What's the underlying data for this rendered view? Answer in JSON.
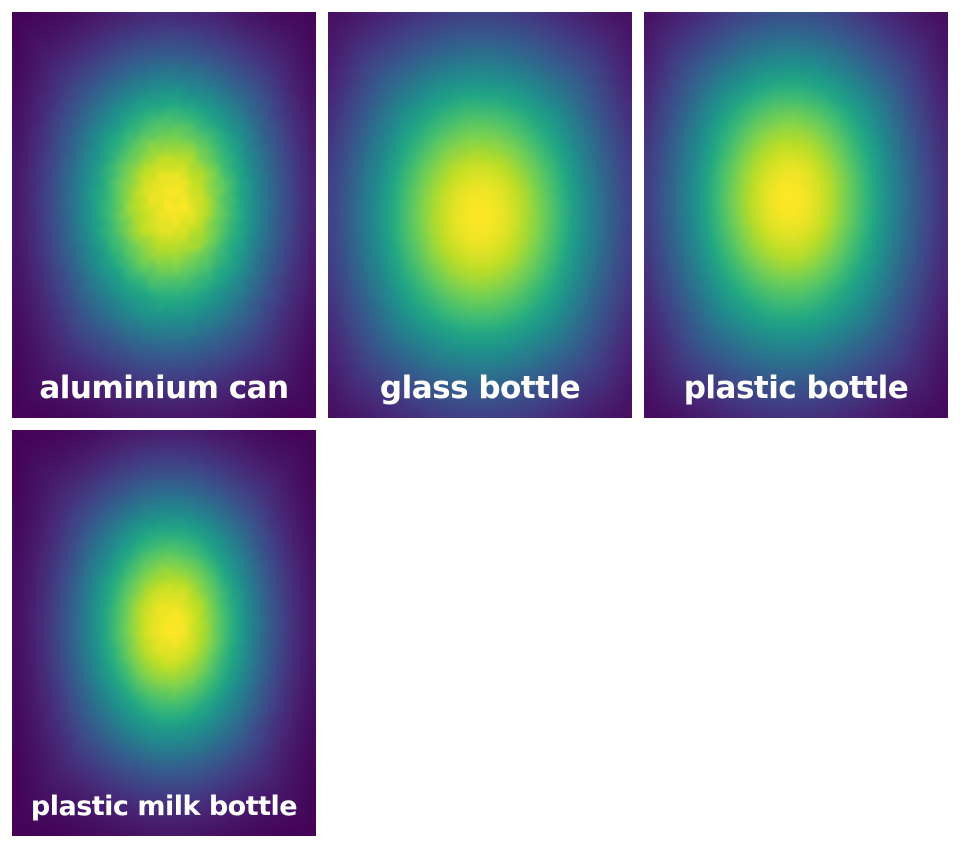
{
  "chart_data": {
    "type": "heatmap",
    "colormap": "viridis",
    "layout": {
      "columns": 3
    },
    "panels": [
      {
        "label": "aluminium can",
        "peak": [
          0.52,
          0.47
        ],
        "spread": [
          0.22,
          0.23
        ],
        "blockiness": 0.6
      },
      {
        "label": "glass bottle",
        "peak": [
          0.5,
          0.5
        ],
        "spread": [
          0.28,
          0.28
        ],
        "blockiness": 0.1
      },
      {
        "label": "plastic bottle",
        "peak": [
          0.48,
          0.46
        ],
        "spread": [
          0.26,
          0.28
        ],
        "blockiness": 0.1
      },
      {
        "label": "plastic milk bottle",
        "peak": [
          0.52,
          0.48
        ],
        "spread": [
          0.2,
          0.22
        ],
        "blockiness": 0.3
      }
    ]
  }
}
